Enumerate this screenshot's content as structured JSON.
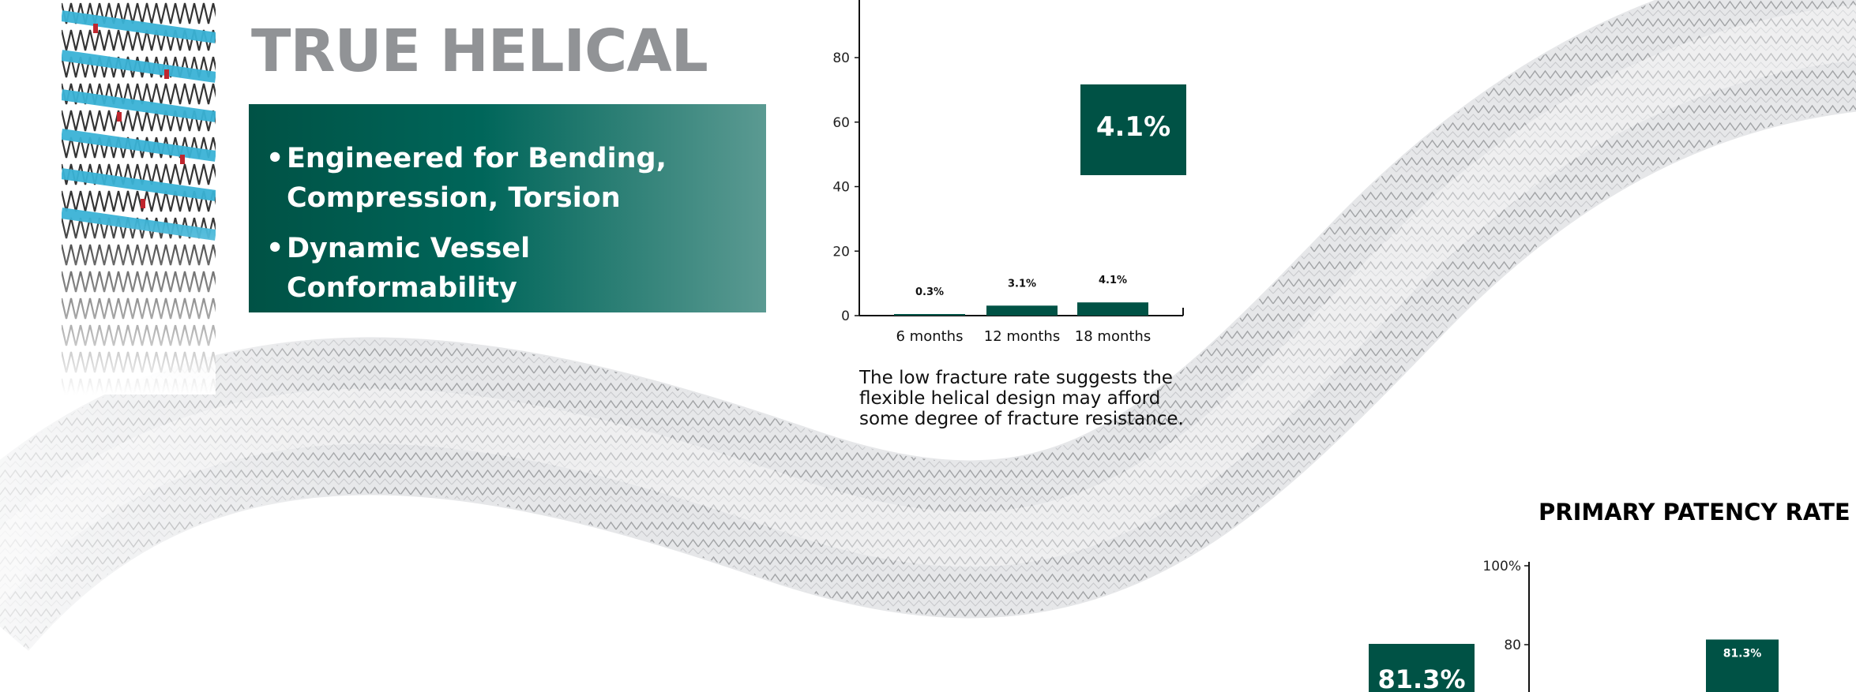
{
  "hero": {
    "title": "TRUE HELICAL"
  },
  "features": [
    {
      "lines": [
        "Engineered for Bending,",
        "Compression, Torsion"
      ]
    },
    {
      "lines": [
        "Dynamic Vessel Conformability"
      ]
    }
  ],
  "fracture_caption": "The low fracture rate suggests the flexible helical design may afford some degree of fracture resistance.",
  "patency_title": "PRIMARY PATENCY RATE",
  "colors": {
    "brand_green": "#005245",
    "title_gray": "#919396"
  },
  "chart_data": [
    {
      "type": "bar",
      "categories": [
        "6 months",
        "12 months",
        "18 months"
      ],
      "values": [
        0.3,
        3.1,
        4.1
      ],
      "data_labels": [
        "0.3%",
        "3.1%",
        "4.1%"
      ],
      "yticks": [
        "0",
        "20",
        "40",
        "60",
        "80"
      ],
      "ylim": [
        0,
        100
      ],
      "callout": "4.1%",
      "title": "",
      "xlabel": "",
      "ylabel": ""
    },
    {
      "type": "bar",
      "title": "PRIMARY PATENCY RATE",
      "values": [
        81.3
      ],
      "data_labels": [
        "81.3%"
      ],
      "yticks": [
        "100%",
        "80"
      ],
      "ylim": [
        0,
        100
      ],
      "callout": "81.3%"
    }
  ]
}
